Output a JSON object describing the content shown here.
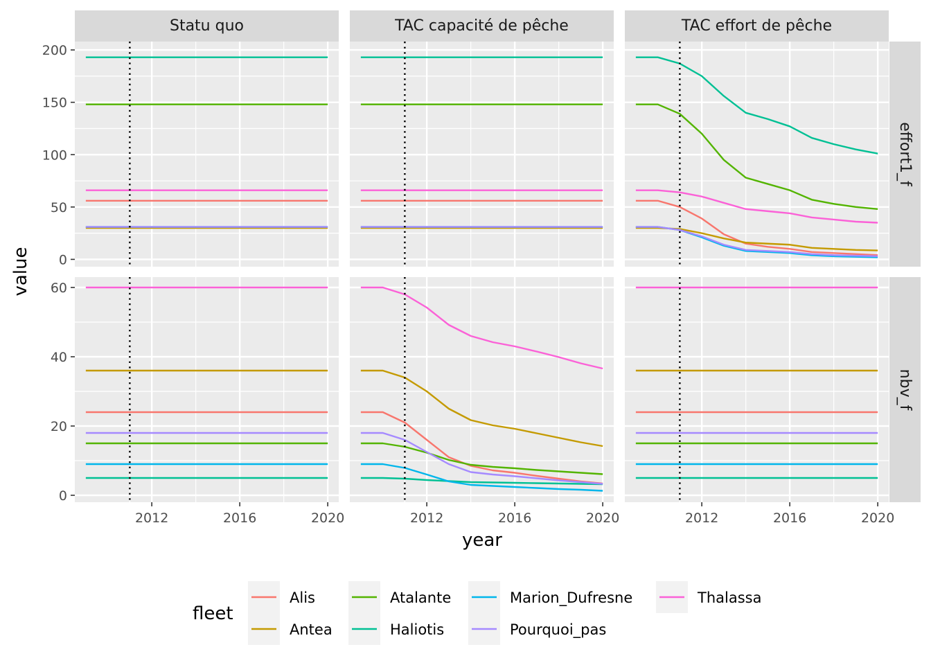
{
  "chart_data": {
    "type": "line",
    "facets": {
      "columns": [
        "Statu quo",
        "TAC capacité de pêche",
        "TAC effort de pêche"
      ],
      "rows": [
        "effort1_f",
        "nbv_f"
      ]
    },
    "xlabel": "year",
    "ylabel": "value",
    "x": [
      2009,
      2010,
      2011,
      2012,
      2013,
      2014,
      2015,
      2016,
      2017,
      2018,
      2019,
      2020
    ],
    "xlim": [
      2008.5,
      2020.5
    ],
    "x_ticks": [
      2012,
      2016,
      2020
    ],
    "ylim_rows": {
      "effort1_f": [
        -7,
        208
      ],
      "nbv_f": [
        -2,
        63
      ]
    },
    "y_ticks_rows": {
      "effort1_f": [
        0,
        50,
        100,
        150,
        200
      ],
      "nbv_f": [
        0,
        20,
        40,
        60
      ]
    },
    "vline": {
      "x": 2011,
      "style": "dotted"
    },
    "grid": true,
    "legend": {
      "title": "fleet",
      "position": "bottom",
      "entries": [
        "Alis",
        "Antea",
        "Atalante",
        "Haliotis",
        "Marion_Dufresne",
        "Pourquoi_pas",
        "Thalassa"
      ]
    },
    "colors": {
      "Alis": "#F8766D",
      "Antea": "#C49A00",
      "Atalante": "#53B400",
      "Haliotis": "#00C094",
      "Marion_Dufresne": "#00B6EB",
      "Pourquoi_pas": "#A58AFF",
      "Thalassa": "#FB61D7"
    },
    "series": {
      "effort1_f": {
        "Statu quo": {
          "Alis": [
            56,
            56,
            56,
            56,
            56,
            56,
            56,
            56,
            56,
            56,
            56,
            56
          ],
          "Antea": [
            30,
            30,
            30,
            30,
            30,
            30,
            30,
            30,
            30,
            30,
            30,
            30
          ],
          "Atalante": [
            148,
            148,
            148,
            148,
            148,
            148,
            148,
            148,
            148,
            148,
            148,
            148
          ],
          "Haliotis": [
            193,
            193,
            193,
            193,
            193,
            193,
            193,
            193,
            193,
            193,
            193,
            193
          ],
          "Marion_Dufresne": [
            31,
            31,
            31,
            31,
            31,
            31,
            31,
            31,
            31,
            31,
            31,
            31
          ],
          "Pourquoi_pas": [
            31,
            31,
            31,
            31,
            31,
            31,
            31,
            31,
            31,
            31,
            31,
            31
          ],
          "Thalassa": [
            66,
            66,
            66,
            66,
            66,
            66,
            66,
            66,
            66,
            66,
            66,
            66
          ]
        },
        "TAC capacité de pêche": {
          "Alis": [
            56,
            56,
            56,
            56,
            56,
            56,
            56,
            56,
            56,
            56,
            56,
            56
          ],
          "Antea": [
            30,
            30,
            30,
            30,
            30,
            30,
            30,
            30,
            30,
            30,
            30,
            30
          ],
          "Atalante": [
            148,
            148,
            148,
            148,
            148,
            148,
            148,
            148,
            148,
            148,
            148,
            148
          ],
          "Haliotis": [
            193,
            193,
            193,
            193,
            193,
            193,
            193,
            193,
            193,
            193,
            193,
            193
          ],
          "Marion_Dufresne": [
            31,
            31,
            31,
            31,
            31,
            31,
            31,
            31,
            31,
            31,
            31,
            31
          ],
          "Pourquoi_pas": [
            31,
            31,
            31,
            31,
            31,
            31,
            31,
            31,
            31,
            31,
            31,
            31
          ],
          "Thalassa": [
            66,
            66,
            66,
            66,
            66,
            66,
            66,
            66,
            66,
            66,
            66,
            66
          ]
        },
        "TAC effort de pêche": {
          "Alis": [
            56,
            56,
            50,
            39,
            24,
            15,
            12,
            10,
            7,
            6,
            5,
            4
          ],
          "Antea": [
            30,
            30,
            29,
            25,
            20,
            16,
            15,
            14,
            11,
            10,
            9,
            8.5
          ],
          "Atalante": [
            148,
            148,
            139,
            120,
            95,
            78,
            72,
            66,
            57,
            53,
            50,
            48
          ],
          "Haliotis": [
            193,
            193,
            187,
            175,
            156,
            140,
            134,
            127,
            116,
            110,
            105,
            101
          ],
          "Marion_Dufresne": [
            31,
            31,
            28,
            21,
            13,
            8,
            7,
            6,
            4,
            3,
            2.5,
            2
          ],
          "Pourquoi_pas": [
            31,
            31,
            28,
            22,
            14,
            9,
            8,
            7,
            5,
            4,
            3.5,
            3
          ],
          "Thalassa": [
            66,
            66,
            64,
            60,
            54,
            48,
            46,
            44,
            40,
            38,
            36,
            35
          ]
        }
      },
      "nbv_f": {
        "Statu quo": {
          "Alis": [
            24,
            24,
            24,
            24,
            24,
            24,
            24,
            24,
            24,
            24,
            24,
            24
          ],
          "Antea": [
            36,
            36,
            36,
            36,
            36,
            36,
            36,
            36,
            36,
            36,
            36,
            36
          ],
          "Atalante": [
            15,
            15,
            15,
            15,
            15,
            15,
            15,
            15,
            15,
            15,
            15,
            15
          ],
          "Haliotis": [
            5,
            5,
            5,
            5,
            5,
            5,
            5,
            5,
            5,
            5,
            5,
            5
          ],
          "Marion_Dufresne": [
            9,
            9,
            9,
            9,
            9,
            9,
            9,
            9,
            9,
            9,
            9,
            9
          ],
          "Pourquoi_pas": [
            18,
            18,
            18,
            18,
            18,
            18,
            18,
            18,
            18,
            18,
            18,
            18
          ],
          "Thalassa": [
            60,
            60,
            60,
            60,
            60,
            60,
            60,
            60,
            60,
            60,
            60,
            60
          ]
        },
        "TAC capacité de pêche": {
          "Alis": [
            24,
            24,
            21,
            16,
            11,
            8.5,
            7.2,
            6.5,
            5.6,
            4.8,
            4.0,
            3.4
          ],
          "Antea": [
            36,
            36,
            34,
            30,
            25,
            21.7,
            20.2,
            19.2,
            17.9,
            16.6,
            15.3,
            14.2
          ],
          "Atalante": [
            15,
            15,
            14,
            12.3,
            10.2,
            8.8,
            8.2,
            7.8,
            7.3,
            6.9,
            6.5,
            6.1
          ],
          "Haliotis": [
            5,
            5,
            4.8,
            4.4,
            4.1,
            3.8,
            3.7,
            3.6,
            3.5,
            3.4,
            3.3,
            3.2
          ],
          "Marion_Dufresne": [
            9,
            9,
            7.9,
            6,
            4,
            3,
            2.7,
            2.4,
            2.1,
            1.8,
            1.6,
            1.3
          ],
          "Pourquoi_pas": [
            18,
            18,
            16,
            12.5,
            9,
            6.7,
            6,
            5.5,
            4.9,
            4.3,
            3.8,
            3.3
          ],
          "Thalassa": [
            60,
            60,
            58,
            54.2,
            49.2,
            46,
            44.2,
            43,
            41.5,
            39.9,
            38.1,
            36.6
          ]
        },
        "TAC effort de pêche": {
          "Alis": [
            24,
            24,
            24,
            24,
            24,
            24,
            24,
            24,
            24,
            24,
            24,
            24
          ],
          "Antea": [
            36,
            36,
            36,
            36,
            36,
            36,
            36,
            36,
            36,
            36,
            36,
            36
          ],
          "Atalante": [
            15,
            15,
            15,
            15,
            15,
            15,
            15,
            15,
            15,
            15,
            15,
            15
          ],
          "Haliotis": [
            5,
            5,
            5,
            5,
            5,
            5,
            5,
            5,
            5,
            5,
            5,
            5
          ],
          "Marion_Dufresne": [
            9,
            9,
            9,
            9,
            9,
            9,
            9,
            9,
            9,
            9,
            9,
            9
          ],
          "Pourquoi_pas": [
            18,
            18,
            18,
            18,
            18,
            18,
            18,
            18,
            18,
            18,
            18,
            18
          ],
          "Thalassa": [
            60,
            60,
            60,
            60,
            60,
            60,
            60,
            60,
            60,
            60,
            60,
            60
          ]
        }
      }
    }
  }
}
